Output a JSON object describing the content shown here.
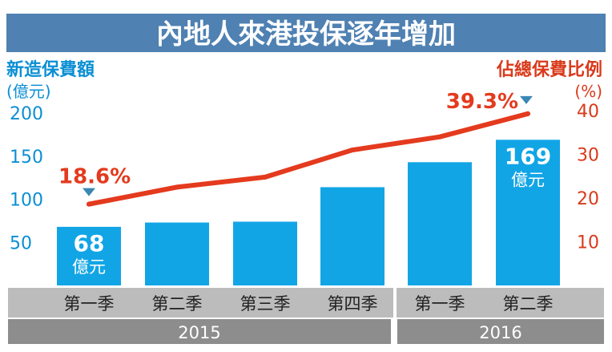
{
  "chart_data": {
    "type": "bar",
    "title": "內地人來港投保逐年增加",
    "left_axis": {
      "label_line1": "新造保費額",
      "label_line2": "(億元)",
      "ticks": [
        "200",
        "150",
        "100",
        "50"
      ],
      "tick_values": [
        200,
        150,
        100,
        50
      ],
      "range": [
        0,
        200
      ]
    },
    "right_axis": {
      "label_line1": "佔總保費比例",
      "label_line2": "(%)",
      "ticks": [
        "40",
        "30",
        "20",
        "10"
      ],
      "tick_values": [
        40,
        30,
        20,
        10
      ],
      "range": [
        0,
        40
      ]
    },
    "categories": [
      "第一季",
      "第二季",
      "第三季",
      "第四季",
      "第一季",
      "第二季"
    ],
    "years": [
      {
        "label": "2015",
        "span": [
          0,
          3
        ]
      },
      {
        "label": "2016",
        "span": [
          4,
          5
        ]
      }
    ],
    "bar_values": [
      68,
      73,
      74,
      114,
      143,
      169
    ],
    "line_values": [
      18.6,
      22.5,
      24.8,
      31.0,
      34.0,
      39.3
    ],
    "bar_labels": [
      {
        "index": 0,
        "value": "68",
        "unit": "億元"
      },
      {
        "index": 5,
        "value": "169",
        "unit": "億元"
      }
    ],
    "line_labels": [
      {
        "index": 0,
        "text": "18.6%"
      },
      {
        "index": 5,
        "text": "39.3%"
      }
    ],
    "colors": {
      "title_bg": "#4f81b2",
      "bar": "#12a5e6",
      "line": "#e43a1e",
      "axis_text_left": "#0b8fd4",
      "axis_text_right": "#d93a1b",
      "category_band": "#bcbcbc",
      "year_band": "#8d8d8d",
      "marker": "#3a87b5"
    }
  }
}
